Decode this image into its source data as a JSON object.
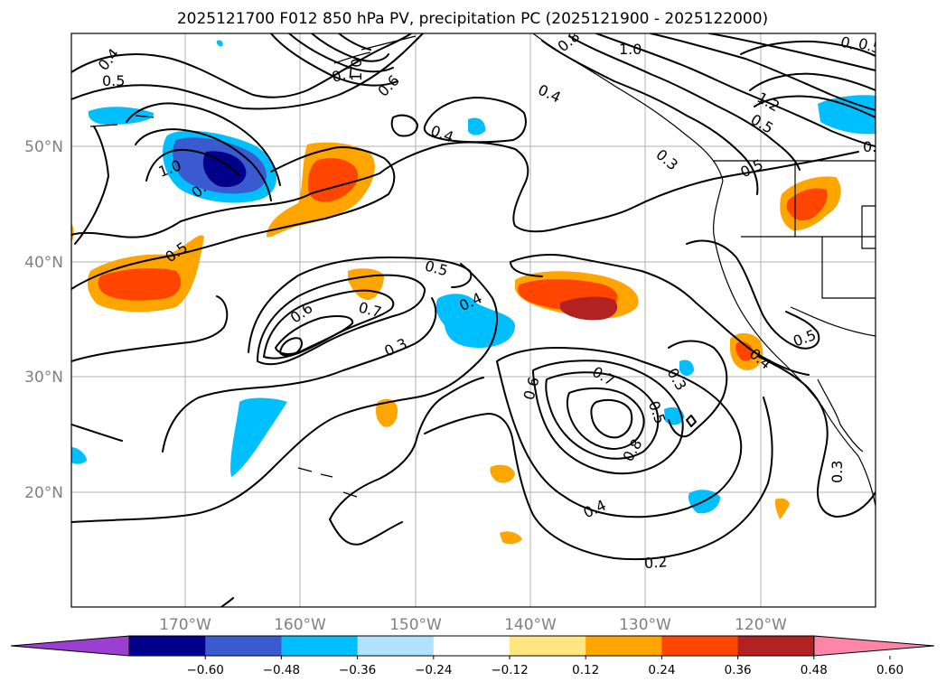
{
  "title": "2025121700 F012 850 hPa PV, precipitation PC (2025121900 - 2025122000)",
  "longitude_labels": [
    "170°W",
    "160°W",
    "150°W",
    "140°W",
    "130°W",
    "120°W"
  ],
  "latitude_labels": [
    "50°N",
    "40°N",
    "30°N",
    "20°N"
  ],
  "colorbar": {
    "tick_labels": [
      "−0.60",
      "−0.48",
      "−0.36",
      "−0.24",
      "−0.12",
      "0.12",
      "0.24",
      "0.36",
      "0.48",
      "0.60"
    ],
    "colors": [
      "#9a3fd0",
      "#00008b",
      "#3a5bcf",
      "#00bfff",
      "#b0e2ff",
      "#ffffff",
      "#ffe680",
      "#ffa500",
      "#ff4500",
      "#b22222",
      "#ff85a8"
    ]
  },
  "contour_labels": {
    "c01": "0.4",
    "c02": "0.5",
    "c03": "1.0",
    "c04": "0.",
    "c05": "0.7",
    "c06": "0.6",
    "c07": "1.0",
    "c08": "0.8",
    "c09": "0.4",
    "c10": "0.4",
    "c11": "1.0",
    "c12": "0.",
    "c13": "0.5",
    "c14": "1.2",
    "c15": "0.5",
    "c16": "0.3",
    "c17": "0.5",
    "c18": "0.",
    "c19": "0.5",
    "c20": "0.6",
    "c21": "0.7",
    "c22": "0.3",
    "c23": "0.4",
    "c24": "0.5",
    "c25": "0.6",
    "c26": "0.7",
    "c27": "0.5",
    "c28": "0.8",
    "c29": "0.3",
    "c30": "0.4",
    "c31": "0.2",
    "c32": "0.5",
    "c33": "0.4",
    "c34": "0.3"
  },
  "colors": {
    "gridline": "#b0b0b0",
    "contour": "#000000",
    "axis_text": "#808080"
  }
}
